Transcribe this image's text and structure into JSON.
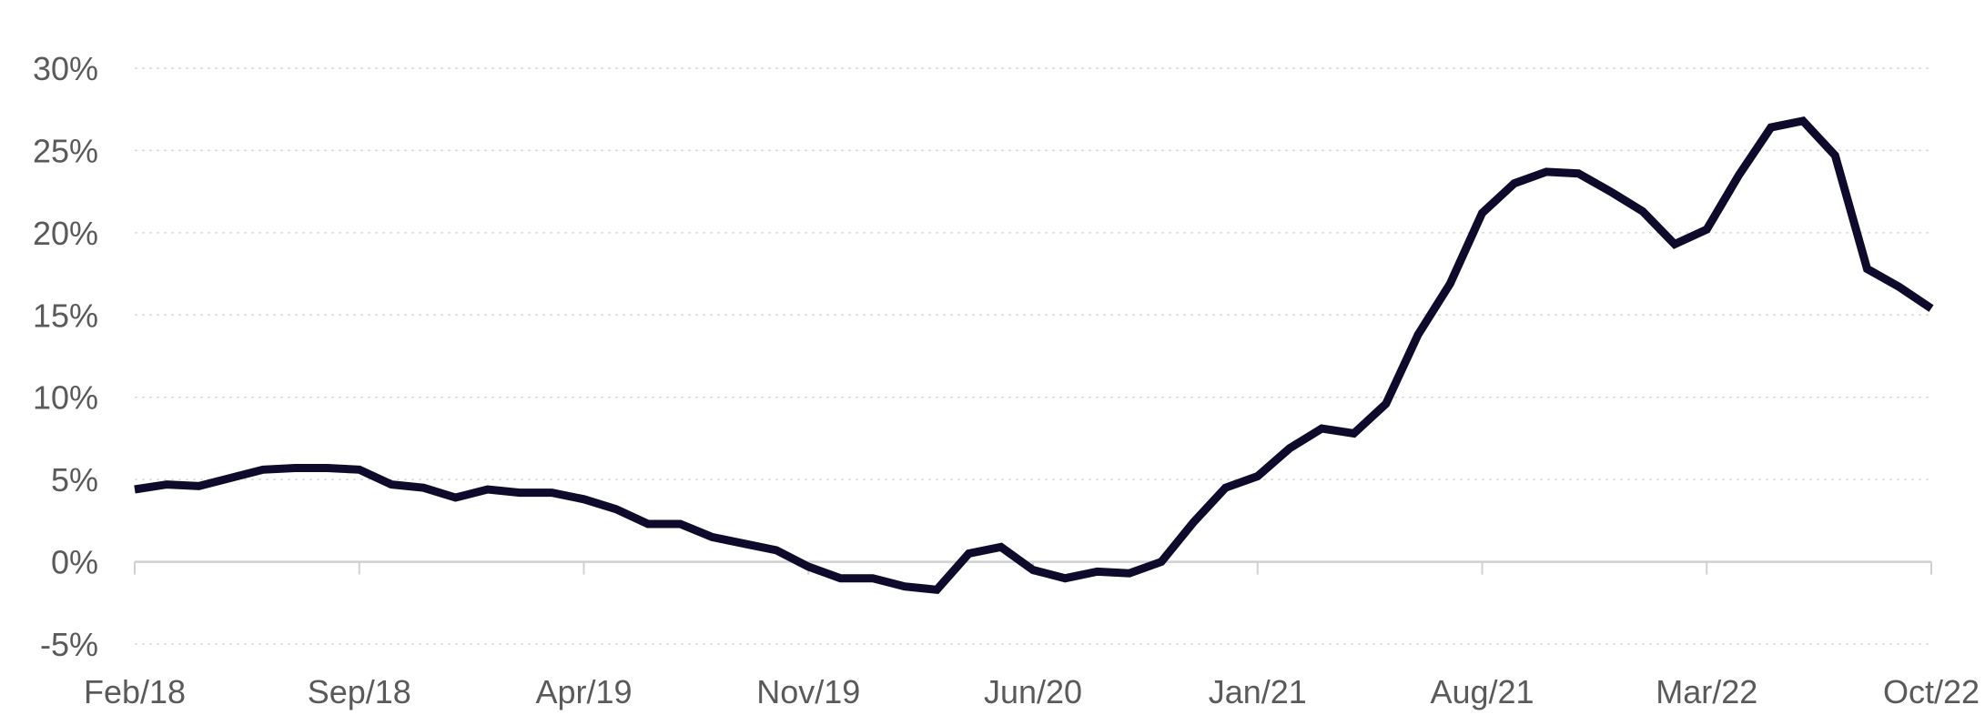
{
  "chart_data": {
    "type": "line",
    "title": "",
    "xlabel": "",
    "ylabel": "",
    "ylim": [
      -5,
      30
    ],
    "y_ticks": [
      "30%",
      "25%",
      "20%",
      "15%",
      "10%",
      "5%",
      "0%",
      "-5%"
    ],
    "y_tick_values": [
      30,
      25,
      20,
      15,
      10,
      5,
      0,
      -5
    ],
    "x_tick_labels": [
      "Feb/18",
      "Sep/18",
      "Apr/19",
      "Nov/19",
      "Jun/20",
      "Jan/21",
      "Aug/21",
      "Mar/22",
      "Oct/22"
    ],
    "x_tick_months": [
      "2018-02",
      "2018-09",
      "2019-04",
      "2019-11",
      "2020-06",
      "2021-01",
      "2021-08",
      "2022-03",
      "2022-10"
    ],
    "grid": true,
    "legend": "none",
    "colors": {
      "line": "#0d0a2b",
      "grid": "#d9d9d9",
      "axis": "#d0d0d0",
      "label": "#5a5a5a"
    },
    "series": [
      {
        "x": [
          "2018-02",
          "2018-03",
          "2018-04",
          "2018-05",
          "2018-06",
          "2018-07",
          "2018-08",
          "2018-09",
          "2018-10",
          "2018-11",
          "2018-12",
          "2019-01",
          "2019-02",
          "2019-03",
          "2019-04",
          "2019-05",
          "2019-06",
          "2019-07",
          "2019-08",
          "2019-09",
          "2019-10",
          "2019-11",
          "2019-12",
          "2020-01",
          "2020-02",
          "2020-03",
          "2020-04",
          "2020-05",
          "2020-06",
          "2020-07",
          "2020-08",
          "2020-09",
          "2020-10",
          "2020-11",
          "2020-12",
          "2021-01",
          "2021-02",
          "2021-03",
          "2021-04",
          "2021-05",
          "2021-06",
          "2021-07",
          "2021-08",
          "2021-09",
          "2021-10",
          "2021-11",
          "2021-12",
          "2022-01",
          "2022-02",
          "2022-03",
          "2022-04",
          "2022-05",
          "2022-06",
          "2022-07",
          "2022-08",
          "2022-09",
          "2022-10"
        ],
        "values": [
          4.4,
          4.7,
          4.6,
          5.1,
          5.6,
          5.7,
          5.7,
          5.6,
          4.7,
          4.5,
          3.9,
          4.4,
          4.2,
          4.2,
          3.8,
          3.2,
          2.3,
          2.3,
          1.5,
          1.1,
          0.7,
          -0.3,
          -1.0,
          -1.0,
          -1.5,
          -1.7,
          0.5,
          0.9,
          -0.5,
          -1.0,
          -0.6,
          -0.7,
          0.0,
          2.4,
          4.5,
          5.2,
          6.9,
          8.1,
          7.8,
          9.6,
          13.8,
          16.9,
          21.2,
          23.0,
          23.7,
          23.6,
          22.5,
          21.3,
          19.3,
          20.2,
          23.5,
          26.4,
          26.8,
          24.7,
          17.8,
          16.7,
          15.4
        ]
      }
    ]
  }
}
